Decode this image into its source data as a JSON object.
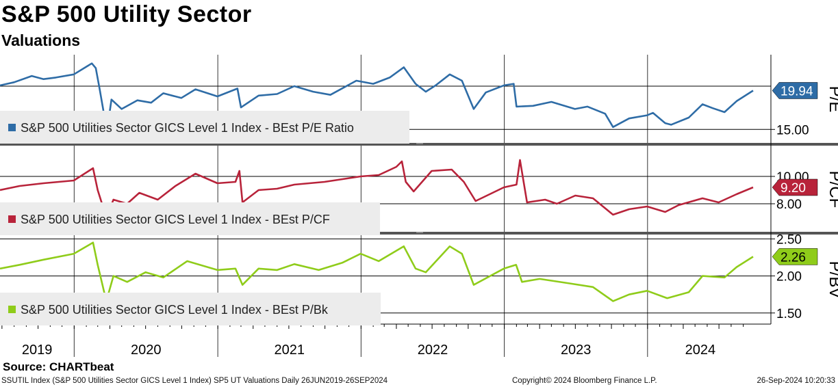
{
  "title": "S&P 500 Utility Sector",
  "subtitle": "Valuations",
  "source": "Source:  CHARTbeat",
  "footer": {
    "left": "SSUTIL Index (S&P 500 Utilities Sector GICS Level 1 Index) SP5 UT Valuations  Daily 26JUN2019-26SEP2024",
    "middle": "Copyright© 2024 Bloomberg Finance L.P.",
    "right": "26-Sep-2024 10:20:33"
  },
  "colors": {
    "pe": "#2e6ca6",
    "pcf": "#b8233a",
    "pbv": "#8fcc1a",
    "grid": "#000000",
    "legend_bg": "#ececec"
  },
  "x_axis": {
    "years": [
      "2019",
      "2020",
      "2021",
      "2022",
      "2023",
      "2024"
    ],
    "range": [
      "2019-06-26",
      "2024-09-26"
    ]
  },
  "chart_data": [
    {
      "type": "line",
      "name": "P/E",
      "axis_label": "P/E",
      "legend": "S&P 500 Utilities Sector GICS Level 1 Index - BEst P/E Ratio",
      "last_value": "19.94",
      "y_ticks": [
        "15.00"
      ],
      "y_tick_values": [
        15.0
      ],
      "gridlines": [
        15.0,
        20.5
      ],
      "ylim": [
        13.2,
        24.5
      ],
      "points": [
        [
          "2019-06-26",
          20.6
        ],
        [
          "2019-08-01",
          21.0
        ],
        [
          "2019-09-15",
          21.8
        ],
        [
          "2019-10-15",
          21.4
        ],
        [
          "2019-11-15",
          21.6
        ],
        [
          "2019-12-31",
          22.0
        ],
        [
          "2020-02-15",
          23.4
        ],
        [
          "2020-02-25",
          22.8
        ],
        [
          "2020-03-05",
          20.4
        ],
        [
          "2020-03-15",
          17.5
        ],
        [
          "2020-03-23",
          14.2
        ],
        [
          "2020-04-05",
          18.8
        ],
        [
          "2020-05-01",
          17.6
        ],
        [
          "2020-06-10",
          18.7
        ],
        [
          "2020-07-15",
          18.4
        ],
        [
          "2020-08-15",
          19.6
        ],
        [
          "2020-09-30",
          19.0
        ],
        [
          "2020-11-05",
          20.1
        ],
        [
          "2020-12-31",
          19.2
        ],
        [
          "2021-02-20",
          20.2
        ],
        [
          "2021-03-01",
          17.8
        ],
        [
          "2021-04-15",
          19.3
        ],
        [
          "2021-06-01",
          19.5
        ],
        [
          "2021-07-15",
          20.5
        ],
        [
          "2021-09-01",
          19.8
        ],
        [
          "2021-10-15",
          19.4
        ],
        [
          "2021-12-20",
          21.2
        ],
        [
          "2022-02-01",
          20.8
        ],
        [
          "2022-03-15",
          21.6
        ],
        [
          "2022-04-20",
          22.9
        ],
        [
          "2022-05-20",
          20.8
        ],
        [
          "2022-06-15",
          19.8
        ],
        [
          "2022-07-10",
          20.6
        ],
        [
          "2022-08-15",
          22.0
        ],
        [
          "2022-09-15",
          21.2
        ],
        [
          "2022-10-15",
          17.6
        ],
        [
          "2022-11-15",
          19.7
        ],
        [
          "2022-12-31",
          20.6
        ],
        [
          "2023-01-25",
          20.8
        ],
        [
          "2023-02-01",
          17.9
        ],
        [
          "2023-03-15",
          18.0
        ],
        [
          "2023-05-01",
          18.5
        ],
        [
          "2023-06-30",
          17.6
        ],
        [
          "2023-08-01",
          17.9
        ],
        [
          "2023-09-15",
          17.0
        ],
        [
          "2023-10-05",
          15.3
        ],
        [
          "2023-11-15",
          16.4
        ],
        [
          "2023-12-31",
          16.8
        ],
        [
          "2024-01-15",
          17.1
        ],
        [
          "2024-02-15",
          15.8
        ],
        [
          "2024-03-01",
          15.6
        ],
        [
          "2024-04-15",
          16.5
        ],
        [
          "2024-05-20",
          18.2
        ],
        [
          "2024-06-15",
          17.7
        ],
        [
          "2024-07-15",
          17.2
        ],
        [
          "2024-08-15",
          18.6
        ],
        [
          "2024-09-26",
          19.94
        ]
      ]
    },
    {
      "type": "line",
      "name": "P/CF",
      "axis_label": "P/CF",
      "legend": "S&P 500 Utilities Sector GICS Level 1 Index - BEst P/CF",
      "last_value": "9.20",
      "y_ticks": [
        "10.00",
        "8.00"
      ],
      "y_tick_values": [
        10.0,
        8.0
      ],
      "gridlines": [
        10.0,
        8.0
      ],
      "ylim": [
        5.9,
        12.2
      ],
      "points": [
        [
          "2019-06-26",
          9.0
        ],
        [
          "2019-08-15",
          9.3
        ],
        [
          "2019-10-15",
          9.5
        ],
        [
          "2019-12-31",
          9.7
        ],
        [
          "2020-02-18",
          10.6
        ],
        [
          "2020-03-01",
          9.0
        ],
        [
          "2020-03-23",
          7.0
        ],
        [
          "2020-04-10",
          8.3
        ],
        [
          "2020-05-15",
          8.0
        ],
        [
          "2020-06-15",
          8.8
        ],
        [
          "2020-08-01",
          8.3
        ],
        [
          "2020-09-15",
          9.3
        ],
        [
          "2020-11-05",
          10.2
        ],
        [
          "2020-12-31",
          9.5
        ],
        [
          "2021-02-15",
          9.6
        ],
        [
          "2021-02-25",
          10.4
        ],
        [
          "2021-03-05",
          8.1
        ],
        [
          "2021-04-15",
          9.0
        ],
        [
          "2021-06-01",
          9.1
        ],
        [
          "2021-07-15",
          9.4
        ],
        [
          "2021-09-30",
          9.6
        ],
        [
          "2021-11-15",
          9.8
        ],
        [
          "2021-12-31",
          10.0
        ],
        [
          "2022-02-15",
          10.1
        ],
        [
          "2022-04-01",
          10.7
        ],
        [
          "2022-04-15",
          11.1
        ],
        [
          "2022-04-25",
          9.6
        ],
        [
          "2022-05-15",
          8.9
        ],
        [
          "2022-06-30",
          10.4
        ],
        [
          "2022-08-20",
          10.5
        ],
        [
          "2022-09-20",
          9.6
        ],
        [
          "2022-10-20",
          8.2
        ],
        [
          "2022-12-31",
          9.2
        ],
        [
          "2023-02-01",
          9.4
        ],
        [
          "2023-02-10",
          11.2
        ],
        [
          "2023-02-28",
          8.1
        ],
        [
          "2023-04-15",
          8.3
        ],
        [
          "2023-05-15",
          8.0
        ],
        [
          "2023-07-01",
          8.6
        ],
        [
          "2023-08-15",
          8.4
        ],
        [
          "2023-10-05",
          7.2
        ],
        [
          "2023-11-15",
          7.6
        ],
        [
          "2023-12-31",
          7.8
        ],
        [
          "2024-02-15",
          7.4
        ],
        [
          "2024-03-20",
          7.9
        ],
        [
          "2024-05-20",
          8.4
        ],
        [
          "2024-06-30",
          8.1
        ],
        [
          "2024-08-15",
          8.7
        ],
        [
          "2024-09-26",
          9.2
        ]
      ]
    },
    {
      "type": "line",
      "name": "P/BV",
      "axis_label": "P/BV",
      "legend": "S&P 500 Utilities Sector GICS Level 1 Index - BEst P/Bk",
      "last_value": "2.26",
      "y_ticks": [
        "2.50",
        "2.00",
        "1.50"
      ],
      "y_tick_values": [
        2.5,
        2.0,
        1.5
      ],
      "gridlines": [
        2.5,
        2.0,
        1.5
      ],
      "ylim": [
        1.35,
        2.55
      ],
      "points": [
        [
          "2019-06-26",
          2.1
        ],
        [
          "2019-08-15",
          2.15
        ],
        [
          "2019-10-15",
          2.22
        ],
        [
          "2019-12-31",
          2.3
        ],
        [
          "2020-02-18",
          2.45
        ],
        [
          "2020-03-01",
          2.15
        ],
        [
          "2020-03-23",
          1.66
        ],
        [
          "2020-04-10",
          2.0
        ],
        [
          "2020-05-15",
          1.92
        ],
        [
          "2020-07-01",
          2.05
        ],
        [
          "2020-08-15",
          1.98
        ],
        [
          "2020-10-15",
          2.2
        ],
        [
          "2020-12-31",
          2.08
        ],
        [
          "2021-02-15",
          2.1
        ],
        [
          "2021-03-05",
          1.88
        ],
        [
          "2021-04-15",
          2.1
        ],
        [
          "2021-06-01",
          2.08
        ],
        [
          "2021-07-15",
          2.16
        ],
        [
          "2021-09-15",
          2.08
        ],
        [
          "2021-11-15",
          2.18
        ],
        [
          "2021-12-31",
          2.3
        ],
        [
          "2022-02-15",
          2.2
        ],
        [
          "2022-04-20",
          2.4
        ],
        [
          "2022-05-20",
          2.1
        ],
        [
          "2022-06-15",
          2.05
        ],
        [
          "2022-08-15",
          2.4
        ],
        [
          "2022-09-15",
          2.3
        ],
        [
          "2022-10-15",
          1.88
        ],
        [
          "2022-12-31",
          2.1
        ],
        [
          "2023-01-31",
          2.15
        ],
        [
          "2023-02-15",
          1.92
        ],
        [
          "2023-04-01",
          1.96
        ],
        [
          "2023-06-15",
          1.9
        ],
        [
          "2023-08-15",
          1.85
        ],
        [
          "2023-10-05",
          1.66
        ],
        [
          "2023-11-15",
          1.75
        ],
        [
          "2023-12-31",
          1.8
        ],
        [
          "2024-02-20",
          1.7
        ],
        [
          "2024-04-15",
          1.78
        ],
        [
          "2024-05-20",
          2.0
        ],
        [
          "2024-07-15",
          1.98
        ],
        [
          "2024-08-15",
          2.12
        ],
        [
          "2024-09-26",
          2.26
        ]
      ]
    }
  ]
}
